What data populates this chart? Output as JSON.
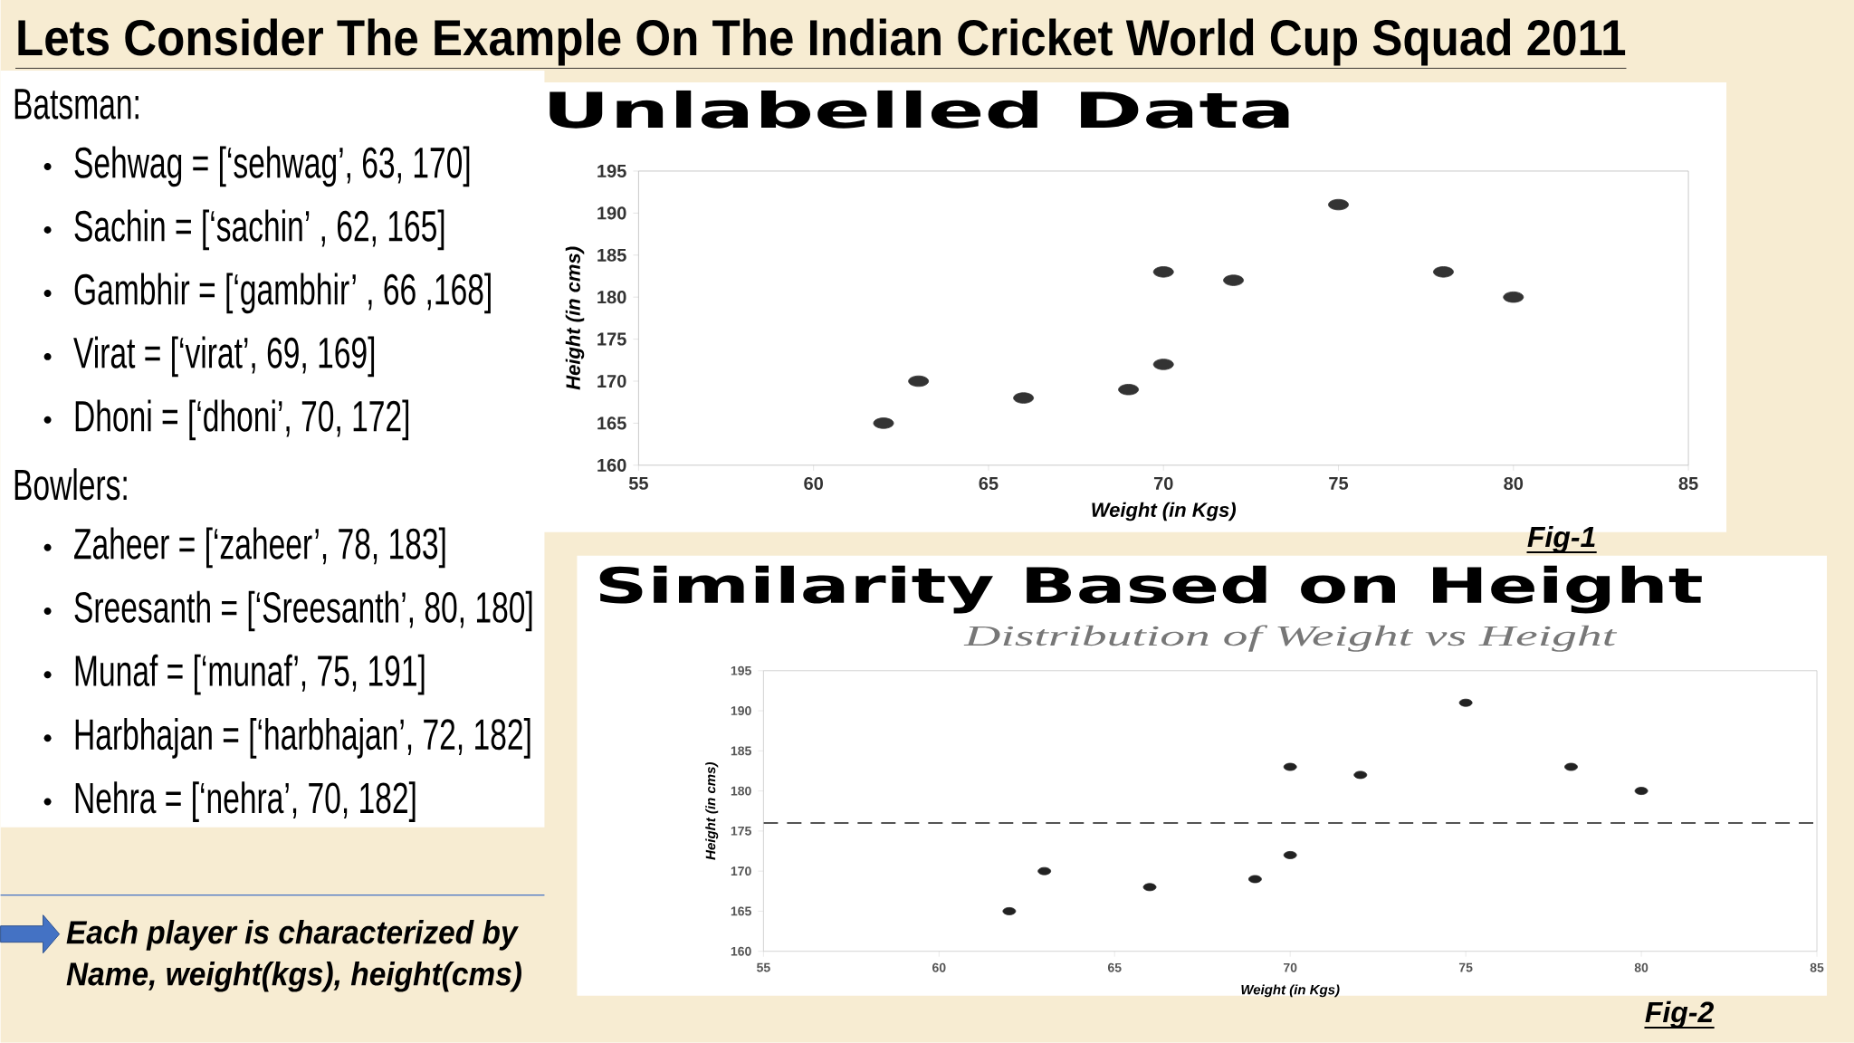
{
  "chart_data": [
    {
      "type": "other",
      "title": "Lets Consider The Example On The Indian Cricket World Cup Squad 2011",
      "annotations": [
        "Each player is characterized by Name, weight(kgs), height(cms)"
      ]
    },
    {
      "type": "other",
      "title": "Batsman:",
      "annotations": [
        "Sehwag = [‘sehwag’, 63, 170]",
        "Sachin = [‘sachin’ , 62, 165]",
        "Gambhir = [‘gambhir’ , 66 ,168]",
        "Virat = [‘virat’, 69, 169]",
        "Dhoni = [‘dhoni’, 70, 172]"
      ]
    },
    {
      "type": "other",
      "title": "Bowlers:",
      "annotations": [
        "Zaheer = [‘zaheer’, 78, 183]",
        "Sreesanth = [‘Sreesanth’, 80, 180]",
        "Munaf = [‘munaf’, 75, 191]",
        "Harbhajan = [‘harbhajan’, 72, 182]",
        "Nehra = [‘nehra’, 70, 182]"
      ]
    },
    {
      "type": "scatter",
      "title": "Unlabelled Data",
      "xlabel": "Weight (in Kgs)",
      "ylabel": "Height (in cms)",
      "x": [
        63,
        62,
        66,
        69,
        70,
        78,
        80,
        75,
        72,
        70
      ],
      "values": [
        170,
        165,
        168,
        169,
        172,
        183,
        180,
        191,
        182,
        183
      ],
      "color": "#333333",
      "marker": "circle",
      "xlim": [
        55,
        85
      ],
      "ylim": [
        160,
        195
      ],
      "xticks": [
        55,
        60,
        65,
        70,
        75,
        80,
        85
      ],
      "yticks": [
        160,
        165,
        170,
        175,
        180,
        185,
        190,
        195
      ],
      "annotations": [
        "Fig-1"
      ]
    },
    {
      "type": "scatter",
      "title": "Similarity Based on Height",
      "subtitle": "Distribution of Weight vs Height",
      "xlabel": "Weight (in Kgs)",
      "ylabel": "Height (in cms)",
      "x": [
        63,
        62,
        66,
        69,
        70,
        78,
        80,
        75,
        72,
        70
      ],
      "values": [
        170,
        165,
        168,
        169,
        172,
        183,
        180,
        191,
        182,
        183
      ],
      "color": "#222222",
      "marker": "circle",
      "xlim": [
        55,
        85
      ],
      "ylim": [
        160,
        195
      ],
      "xticks": [
        55,
        60,
        65,
        70,
        75,
        80,
        85
      ],
      "yticks": [
        160,
        165,
        170,
        175,
        180,
        185,
        190,
        195
      ],
      "ref_lines": [
        {
          "axis": "y",
          "value": 176,
          "color": "#555555",
          "line_style": "dashed"
        }
      ],
      "annotations": [
        "Fig-2"
      ]
    }
  ]
}
